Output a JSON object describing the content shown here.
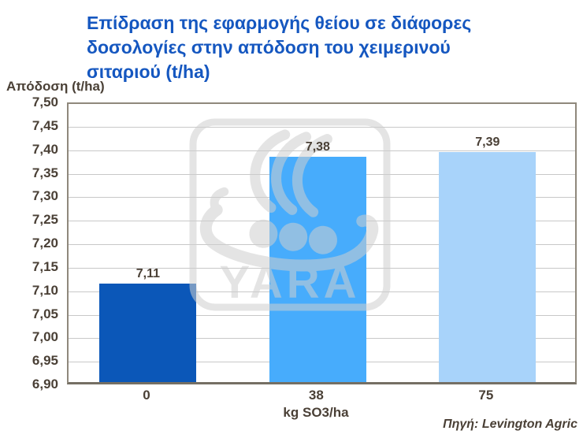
{
  "page": {
    "background": "#FFFFFF"
  },
  "header": {
    "title_lines": [
      "Επίδραση της εφαρμογής θείου σε διάφορες",
      "δοσολογίες στην απόδοση του χειμερινού",
      "σιταριού (t/ha)"
    ],
    "title_color": "#1557C0"
  },
  "y_axis": {
    "label": "Απόδοση (t/ha)"
  },
  "x_axis": {
    "unit_label": "kg SO3/ha"
  },
  "footer": {
    "source": "Πηγή: Levington Agric"
  },
  "watermark": {
    "icon": "yara-viking-ship-logo",
    "wordmark": "YARA",
    "color": "#CFCFCF"
  },
  "colors": {
    "title": "#1557C0",
    "text": "#4A4036",
    "grid": "#C8C8C8",
    "plot_border": "#8F887C",
    "axis_line": "#756F64"
  },
  "chart_data": {
    "type": "bar",
    "title": "Επίδραση της εφαρμογής θείου σε διάφορες δοσολογίες στην απόδοση του χειμερινού σιταριού (t/ha)",
    "categories": [
      "0",
      "38",
      "75"
    ],
    "values": [
      7.11,
      7.38,
      7.39
    ],
    "value_labels": [
      "7,11",
      "7,38",
      "7,39"
    ],
    "bar_colors": [
      "#0B57B8",
      "#47ACFC",
      "#A8D3FA"
    ],
    "xlabel": "kg SO3/ha",
    "ylabel": "Απόδοση (t/ha)",
    "ylim": [
      6.9,
      7.5
    ],
    "ytick_step": 0.05,
    "ytick_labels": [
      "7,50",
      "7,45",
      "7,40",
      "7,35",
      "7,30",
      "7,25",
      "7,20",
      "7,15",
      "7,10",
      "7,05",
      "7,00",
      "6,95",
      "6,90"
    ],
    "grid": true,
    "legend": false,
    "source": "Πηγή: Levington Agric"
  }
}
